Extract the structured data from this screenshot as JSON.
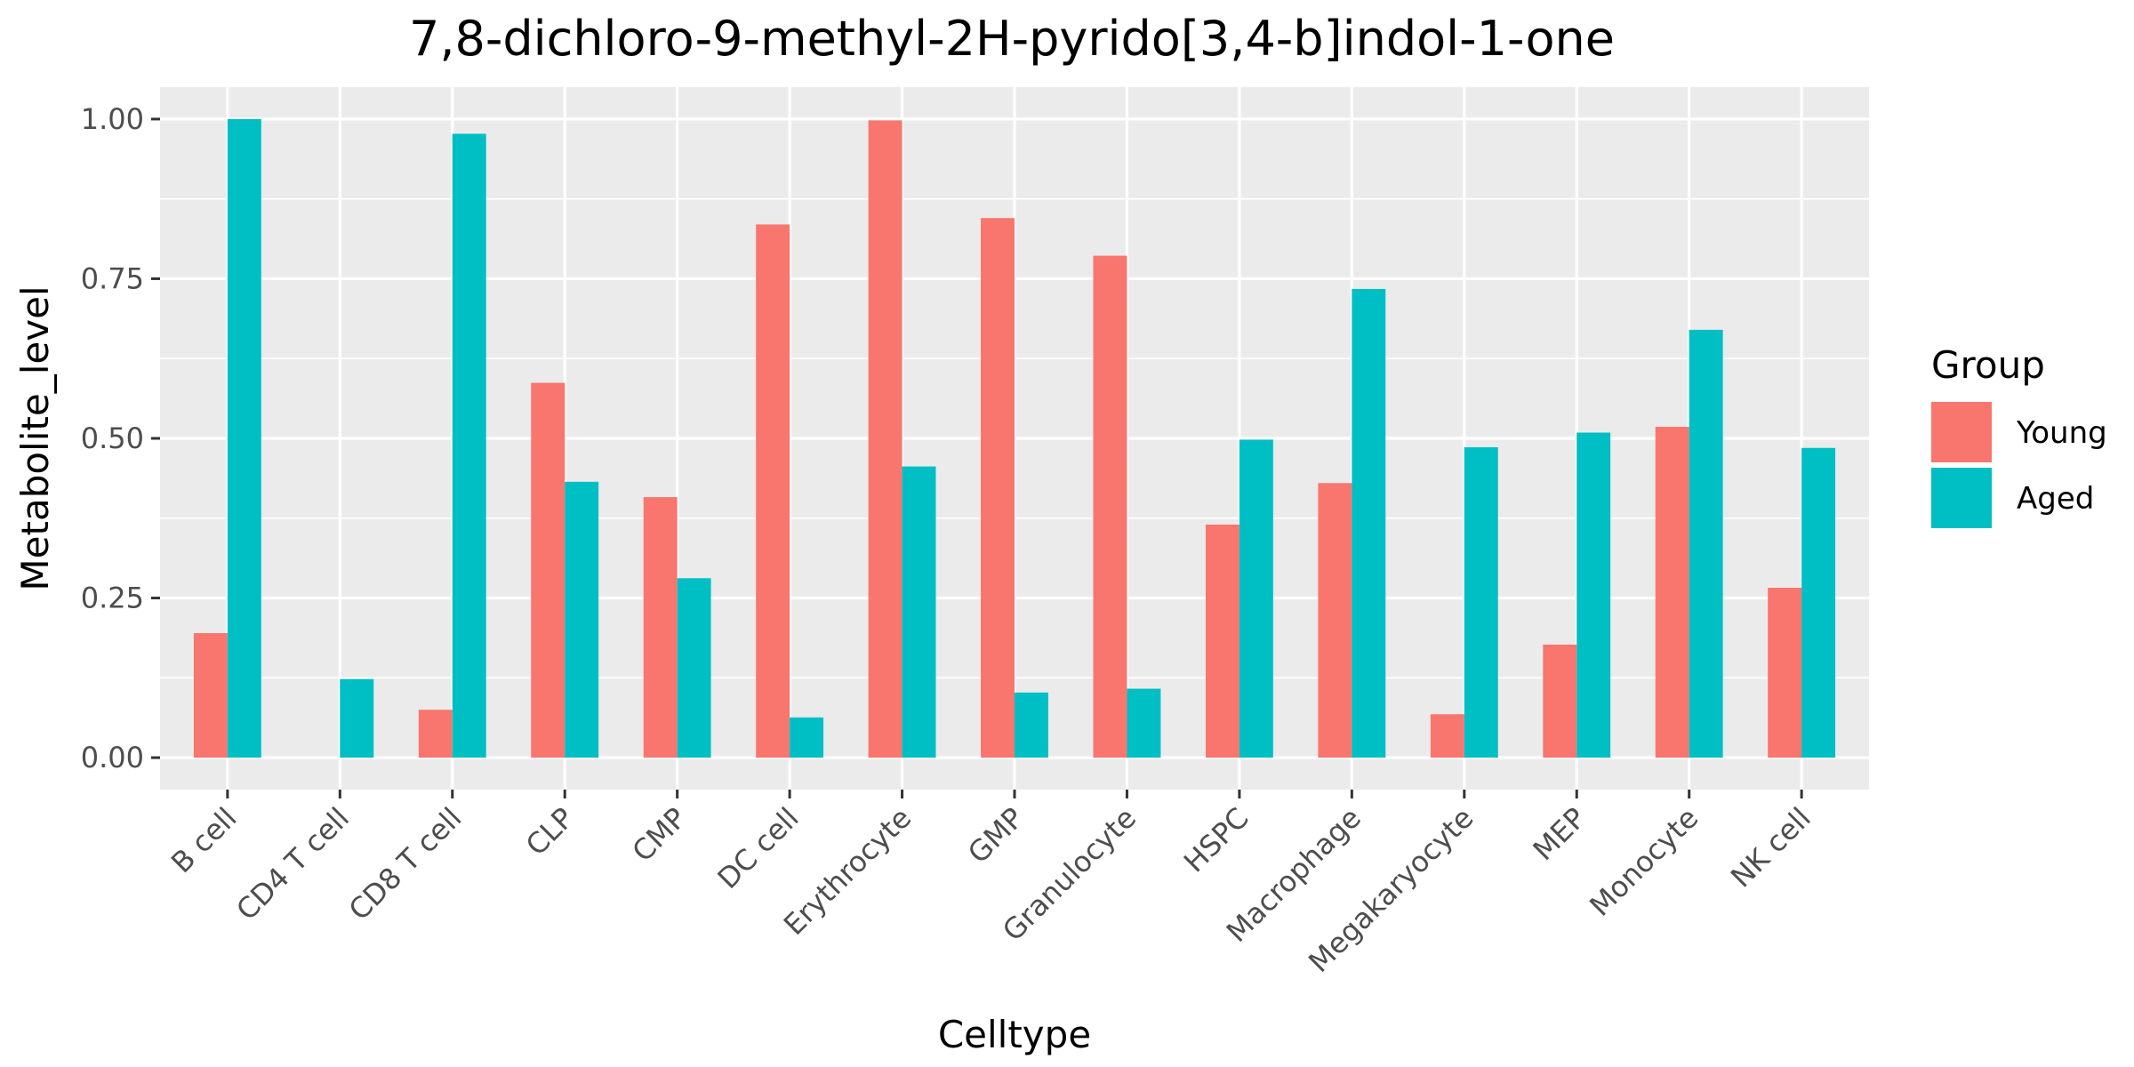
{
  "chart_data": {
    "type": "bar",
    "title": "7,8-dichloro-9-methyl-2H-pyrido[3,4-b]indol-1-one",
    "xlabel": "Celltype",
    "ylabel": "Metabolite_level",
    "ylim": [
      -0.05,
      1.05
    ],
    "yticks": [
      0.0,
      0.25,
      0.5,
      0.75,
      1.0
    ],
    "ytick_labels": [
      "0.00",
      "0.25",
      "0.50",
      "0.75",
      "1.00"
    ],
    "categories": [
      "B cell",
      "CD4 T cell",
      "CD8 T cell",
      "CLP",
      "CMP",
      "DC cell",
      "Erythrocyte",
      "GMP",
      "Granulocyte",
      "HSPC",
      "Macrophage",
      "Megakaryocyte",
      "MEP",
      "Monocyte",
      "NK cell"
    ],
    "series": [
      {
        "name": "Young",
        "color": "#F8766D",
        "values": [
          0.195,
          0.0,
          0.075,
          0.587,
          0.408,
          0.835,
          0.998,
          0.845,
          0.786,
          0.365,
          0.43,
          0.068,
          0.177,
          0.518,
          0.266
        ]
      },
      {
        "name": "Aged",
        "color": "#00BFC4",
        "values": [
          1.0,
          0.123,
          0.977,
          0.432,
          0.281,
          0.063,
          0.456,
          0.102,
          0.108,
          0.498,
          0.734,
          0.486,
          0.509,
          0.67,
          0.485
        ]
      }
    ],
    "legend": {
      "title": "Group",
      "position": "right"
    },
    "grid": true,
    "panel_background": "#EBEBEB",
    "grid_color": "#FFFFFF"
  }
}
